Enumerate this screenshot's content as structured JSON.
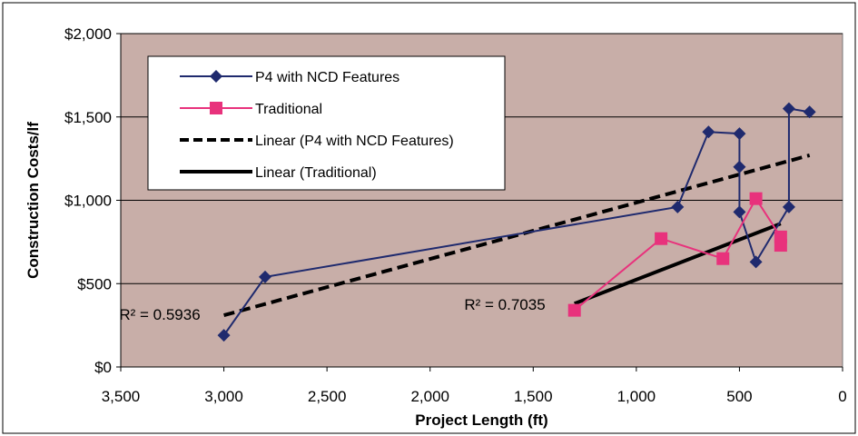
{
  "chart_data": {
    "type": "line",
    "xlabel": "Project Length (ft)",
    "ylabel": "Construction Costs/lf",
    "xlim": [
      3500,
      0
    ],
    "ylim": [
      0,
      2000
    ],
    "x_reversed": true,
    "x_ticks": [
      3500,
      3000,
      2500,
      2000,
      1500,
      1000,
      500,
      0
    ],
    "x_tick_labels": [
      "3,500",
      "3,000",
      "2,500",
      "2,000",
      "1,500",
      "1,000",
      "500",
      "0"
    ],
    "y_ticks": [
      0,
      500,
      1000,
      1500,
      2000
    ],
    "y_tick_labels": [
      "$0",
      "$500",
      "$1,000",
      "$1,500",
      "$2,000"
    ],
    "grid": "horizontal",
    "plot_background": "#c8aea8",
    "legend_position": "top-left",
    "series": [
      {
        "name": "P4 with NCD Features",
        "color": "#1f2a6e",
        "marker": "diamond",
        "x": [
          3000,
          2800,
          800,
          650,
          500,
          500,
          500,
          420,
          260,
          260,
          160
        ],
        "y": [
          190,
          540,
          960,
          1410,
          1400,
          1200,
          930,
          630,
          960,
          1550,
          1530
        ]
      },
      {
        "name": "Traditional",
        "color": "#e8327c",
        "marker": "square",
        "x": [
          1300,
          880,
          580,
          420,
          300,
          300
        ],
        "y": [
          340,
          770,
          650,
          1010,
          780,
          730
        ]
      }
    ],
    "trendlines": [
      {
        "name": "Linear (P4 with NCD Features)",
        "style": "dashed",
        "color": "#000000",
        "x": [
          3000,
          160
        ],
        "y": [
          310,
          1270
        ],
        "r2_label": "R² = 0.5936"
      },
      {
        "name": "Linear (Traditional)",
        "style": "solid",
        "color": "#000000",
        "x": [
          1300,
          300
        ],
        "y": [
          380,
          860
        ],
        "r2_label": "R² = 0.7035"
      }
    ]
  }
}
